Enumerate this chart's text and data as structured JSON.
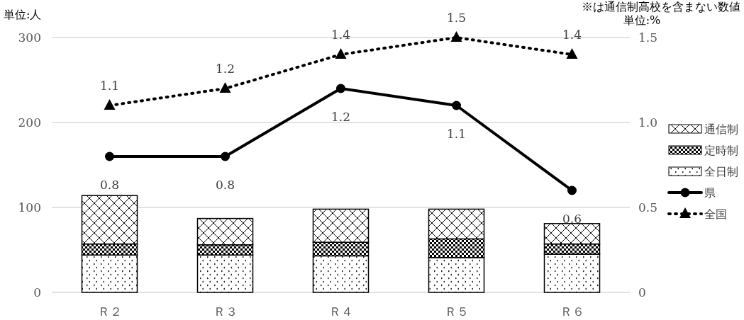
{
  "chart_data": {
    "type": "bar",
    "categories": [
      "Ｒ２",
      "Ｒ３",
      "Ｒ４",
      "Ｒ５",
      "Ｒ６"
    ],
    "ylabel": "単位:人",
    "y2label": "単位:%",
    "annotations": [
      "※は通信制高校を含まない数値"
    ],
    "stacked": true,
    "ylim": [
      0,
      300
    ],
    "yticks": [
      0,
      100,
      200,
      300
    ],
    "y2lim": [
      0,
      1.5
    ],
    "y2ticks": [
      0,
      0.5,
      {
        "value": 1,
        "label": "1.0"
      },
      1.5
    ],
    "grid": "y",
    "legend": "right",
    "series": [
      {
        "name": "全日制",
        "color": "#000000",
        "values": [
          44,
          44,
          43,
          41,
          45
        ]
      },
      {
        "name": "定時制",
        "color": "#000000",
        "values": [
          13,
          12,
          16,
          22,
          12
        ]
      },
      {
        "name": "通信制",
        "color": "#000000",
        "values": [
          57,
          31,
          39,
          35,
          24
        ]
      },
      {
        "name": "県",
        "type": "line",
        "axis": "y2",
        "color": "#000000",
        "marker": "circle",
        "line_style": "solid",
        "values": [
          0.8,
          0.8,
          1.2,
          1.1,
          0.6
        ],
        "value_labels": [
          "0.8",
          "0.8",
          "1.2",
          "1.1",
          "0.6"
        ]
      },
      {
        "name": "全国",
        "type": "line",
        "axis": "y2",
        "color": "#000000",
        "marker": "triangle",
        "line_style": "dotted",
        "values": [
          1.1,
          1.2,
          1.4,
          1.5,
          1.4
        ],
        "value_labels": [
          "1.1",
          "1.2",
          "1.4",
          "1.5",
          "1.4"
        ]
      }
    ]
  }
}
